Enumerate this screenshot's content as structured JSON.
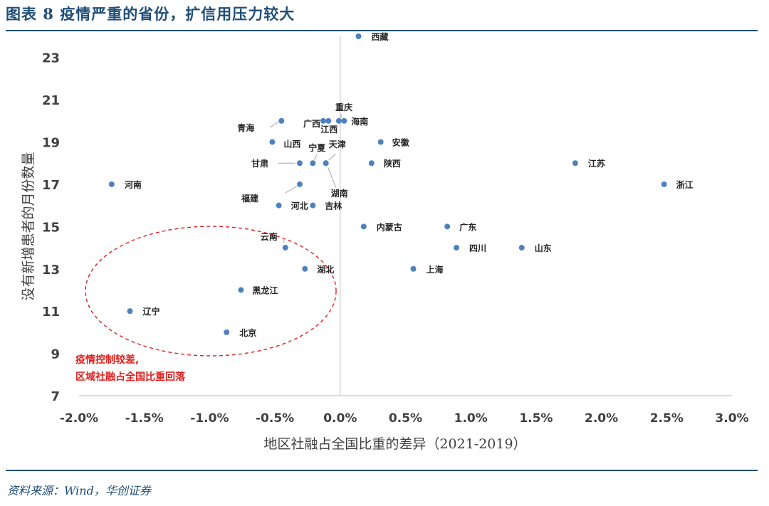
{
  "header": {
    "title": "图表 8 疫情严重的省份，扩信用压力较大"
  },
  "source": {
    "text": "资料来源：Wind，华创证券"
  },
  "colors": {
    "accent": "#1f4e79",
    "point": "#4f81bd",
    "annotation": "#e02020"
  },
  "chart_data": {
    "type": "scatter",
    "xlabel": "地区社融占全国比重的差异（2021-2019）",
    "ylabel": "没有新增患者的月份数量",
    "xlim": [
      -0.02,
      0.03
    ],
    "ylim": [
      7,
      24
    ],
    "xticks": [
      -0.02,
      -0.015,
      -0.01,
      -0.005,
      0,
      0.005,
      0.01,
      0.015,
      0.02,
      0.025,
      0.03
    ],
    "xtick_labels": [
      "-2.0%",
      "-1.5%",
      "-1.0%",
      "-0.5%",
      "0.0%",
      "0.5%",
      "1.0%",
      "1.5%",
      "2.0%",
      "2.5%",
      "3.0%"
    ],
    "yticks": [
      7,
      9,
      11,
      13,
      15,
      17,
      19,
      21,
      23
    ],
    "ytick_labels": [
      "7",
      "9",
      "11",
      "13",
      "15",
      "17",
      "19",
      "21",
      "23"
    ],
    "points": [
      {
        "name": "西藏",
        "x": 0.0014,
        "y": 24
      },
      {
        "name": "重庆",
        "x": -0.0001,
        "y": 20
      },
      {
        "name": "海南",
        "x": 0.0003,
        "y": 20
      },
      {
        "name": "广西",
        "x": -0.0013,
        "y": 20
      },
      {
        "name": "江西",
        "x": -0.0009,
        "y": 20
      },
      {
        "name": "青海",
        "x": -0.0045,
        "y": 20
      },
      {
        "name": "山西",
        "x": -0.0052,
        "y": 19
      },
      {
        "name": "安徽",
        "x": 0.0031,
        "y": 19
      },
      {
        "name": "甘肃",
        "x": -0.0031,
        "y": 18
      },
      {
        "name": "宁夏",
        "x": -0.0021,
        "y": 18
      },
      {
        "name": "天津",
        "x": -0.0011,
        "y": 18
      },
      {
        "name": "陕西",
        "x": 0.0024,
        "y": 18
      },
      {
        "name": "江苏",
        "x": 0.018,
        "y": 18
      },
      {
        "name": "河南",
        "x": -0.0175,
        "y": 17
      },
      {
        "name": "福建",
        "x": -0.0031,
        "y": 17
      },
      {
        "name": "湖南",
        "x": -0.0011,
        "y": 18
      },
      {
        "name": "浙江",
        "x": 0.0248,
        "y": 17
      },
      {
        "name": "河北",
        "x": -0.0047,
        "y": 16
      },
      {
        "name": "吉林",
        "x": -0.0021,
        "y": 16
      },
      {
        "name": "内蒙古",
        "x": 0.0018,
        "y": 15
      },
      {
        "name": "广东",
        "x": 0.0082,
        "y": 15
      },
      {
        "name": "云南",
        "x": -0.0042,
        "y": 14
      },
      {
        "name": "四川",
        "x": 0.0089,
        "y": 14
      },
      {
        "name": "山东",
        "x": 0.0139,
        "y": 14
      },
      {
        "name": "湖北",
        "x": -0.0027,
        "y": 13
      },
      {
        "name": "上海",
        "x": 0.0056,
        "y": 13
      },
      {
        "name": "黑龙江",
        "x": -0.0076,
        "y": 12
      },
      {
        "name": "辽宁",
        "x": -0.0161,
        "y": 11
      },
      {
        "name": "北京",
        "x": -0.0087,
        "y": 10
      }
    ],
    "annotation": {
      "lines": [
        "疫情控制较差,",
        "区域社融占全国比重回落"
      ]
    }
  }
}
